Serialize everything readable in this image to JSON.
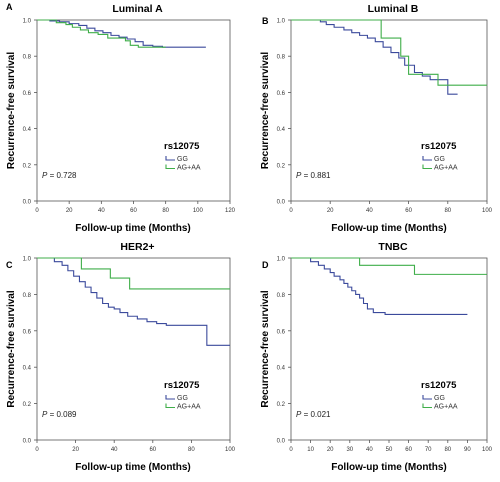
{
  "colors": {
    "gg": "#3b4a9c",
    "agaa": "#3fae49",
    "axis": "#555555",
    "text": "#000000"
  },
  "chart_data": [
    {
      "type": "line",
      "panel_label": "A",
      "title": "Luminal A",
      "xlabel": "Follow-up time (Months)",
      "ylabel": "Recurrence-free survival",
      "xlim": [
        0,
        120
      ],
      "ylim": [
        0,
        1.0
      ],
      "xticks": [
        0,
        20,
        40,
        60,
        80,
        100,
        120
      ],
      "yticks": [
        0.0,
        0.2,
        0.4,
        0.6,
        0.8,
        1.0
      ],
      "legend_title": "rs12075",
      "annotation_p": "= 0.728",
      "series": [
        {
          "name": "GG",
          "color_key": "gg",
          "x": [
            0,
            8,
            14,
            20,
            26,
            31,
            36,
            41,
            46,
            51,
            56,
            61,
            66,
            72,
            78,
            105
          ],
          "y": [
            1.0,
            0.995,
            0.99,
            0.98,
            0.97,
            0.955,
            0.94,
            0.93,
            0.915,
            0.905,
            0.895,
            0.88,
            0.86,
            0.855,
            0.85,
            0.85
          ]
        },
        {
          "name": "AG+AA",
          "color_key": "agaa",
          "x": [
            0,
            12,
            18,
            22,
            27,
            32,
            38,
            44,
            55,
            58,
            63,
            70,
            80
          ],
          "y": [
            1.0,
            0.985,
            0.975,
            0.96,
            0.945,
            0.93,
            0.92,
            0.9,
            0.885,
            0.86,
            0.85,
            0.85,
            0.85
          ]
        }
      ]
    },
    {
      "type": "line",
      "panel_label": "B",
      "title": "Luminal B",
      "xlabel": "Follow-up time (Months)",
      "ylabel": "Recurrence-free survival",
      "xlim": [
        0,
        100
      ],
      "ylim": [
        0,
        1.0
      ],
      "xticks": [
        0,
        20,
        40,
        60,
        80,
        100
      ],
      "yticks": [
        0.0,
        0.2,
        0.4,
        0.6,
        0.8,
        1.0
      ],
      "legend_title": "rs12075",
      "annotation_p": "= 0.881",
      "series": [
        {
          "name": "GG",
          "color_key": "gg",
          "x": [
            0,
            15,
            18,
            22,
            27,
            31,
            35,
            39,
            43,
            47,
            51,
            55,
            58,
            63,
            67,
            71,
            75,
            80,
            85
          ],
          "y": [
            1.0,
            0.99,
            0.975,
            0.96,
            0.945,
            0.93,
            0.915,
            0.9,
            0.88,
            0.85,
            0.82,
            0.79,
            0.75,
            0.71,
            0.69,
            0.67,
            0.67,
            0.59,
            0.59
          ]
        },
        {
          "name": "AG+AA",
          "color_key": "agaa",
          "x": [
            0,
            42,
            46,
            56,
            60,
            65,
            75,
            100
          ],
          "y": [
            1.0,
            1.0,
            0.9,
            0.8,
            0.7,
            0.7,
            0.64,
            0.64
          ]
        }
      ]
    },
    {
      "type": "line",
      "panel_label": "C",
      "title": "HER2+",
      "xlabel": "Follow-up time (Months)",
      "ylabel": "Recurrence-free survival",
      "xlim": [
        0,
        100
      ],
      "ylim": [
        0,
        1.0
      ],
      "xticks": [
        0,
        20,
        40,
        60,
        80,
        100
      ],
      "yticks": [
        0.0,
        0.2,
        0.4,
        0.6,
        0.8,
        1.0
      ],
      "legend_title": "rs12075",
      "annotation_p": "= 0.089",
      "series": [
        {
          "name": "GG",
          "color_key": "gg",
          "x": [
            0,
            9,
            13,
            16,
            19,
            22,
            25,
            28,
            31,
            34,
            37,
            40,
            43,
            47,
            52,
            57,
            62,
            67,
            72,
            80,
            88,
            100
          ],
          "y": [
            1.0,
            0.98,
            0.96,
            0.93,
            0.9,
            0.87,
            0.84,
            0.81,
            0.78,
            0.75,
            0.73,
            0.72,
            0.7,
            0.68,
            0.665,
            0.65,
            0.64,
            0.63,
            0.63,
            0.63,
            0.52,
            0.52
          ]
        },
        {
          "name": "AG+AA",
          "color_key": "agaa",
          "x": [
            0,
            23,
            38,
            48,
            100
          ],
          "y": [
            1.0,
            0.94,
            0.89,
            0.83,
            0.83
          ]
        }
      ]
    },
    {
      "type": "line",
      "panel_label": "D",
      "title": "TNBC",
      "xlabel": "Follow-up time (Months)",
      "ylabel": "Recurrence-free survival",
      "xlim": [
        0,
        100
      ],
      "ylim": [
        0,
        1.0
      ],
      "xticks": [
        0,
        10,
        20,
        30,
        40,
        50,
        60,
        70,
        80,
        90,
        100
      ],
      "yticks": [
        0.0,
        0.2,
        0.4,
        0.6,
        0.8,
        1.0
      ],
      "legend_title": "rs12075",
      "annotation_p": "= 0.021",
      "series": [
        {
          "name": "GG",
          "color_key": "gg",
          "x": [
            0,
            10,
            14,
            17,
            20,
            22,
            25,
            27,
            29,
            31,
            33,
            35,
            37,
            39,
            42,
            48,
            55,
            62,
            70,
            80,
            90
          ],
          "y": [
            1.0,
            0.98,
            0.96,
            0.94,
            0.92,
            0.9,
            0.88,
            0.86,
            0.84,
            0.82,
            0.8,
            0.78,
            0.75,
            0.72,
            0.7,
            0.69,
            0.69,
            0.69,
            0.69,
            0.69,
            0.69
          ]
        },
        {
          "name": "AG+AA",
          "color_key": "agaa",
          "x": [
            0,
            35,
            63,
            100
          ],
          "y": [
            1.0,
            0.96,
            0.91,
            0.91
          ]
        }
      ]
    }
  ]
}
